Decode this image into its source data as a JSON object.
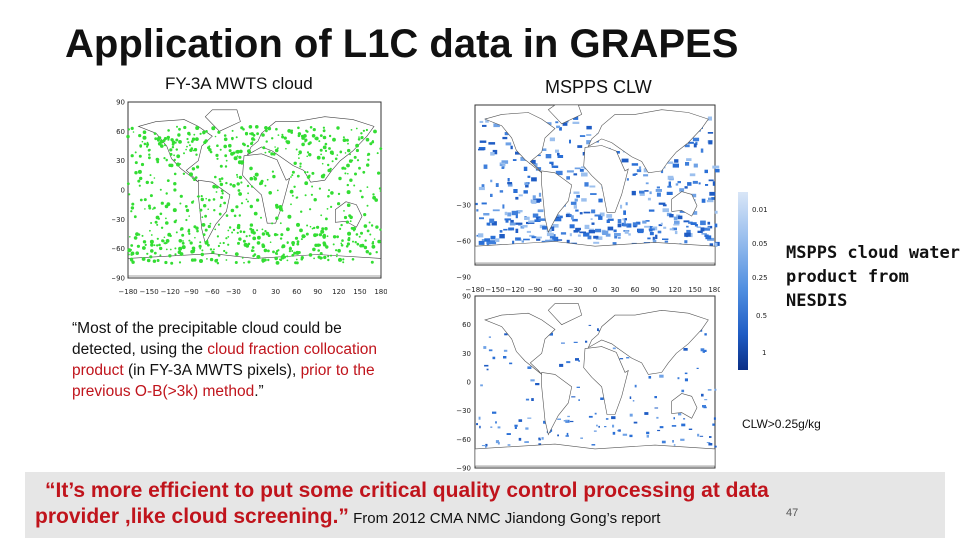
{
  "slide": {
    "title": "Application of L1C data in GRAPES",
    "left_label": "FY-3A MWTS cloud",
    "right_label": "MSPPS CLW",
    "quote": {
      "p1": "“Most of the precipitable cloud could be detected, using the ",
      "r1": "cloud fraction collocation product",
      "p2": " (in FY-3A MWTS pixels),   ",
      "r2": "prior to the previous O-B(>3k) method",
      "p3": ".”"
    },
    "nesdis_note": "MSPPS cloud water\nproduct from\nNESDIS",
    "clw_threshold": "CLW>0.25g/kg",
    "legend_labels": [
      "0.01",
      "0.05",
      "0.25",
      "0.5",
      "1"
    ],
    "bottom_quote": {
      "line1": "“It’s  more  efficient to put some critical quality control processing at data",
      "line2": "provider ,like cloud screening.”",
      "source": " From 2012 CMA NMC Jiandong Gong’s report"
    },
    "page_number": "47"
  },
  "maps": {
    "left_x_ticks": [
      "−180",
      "−150",
      "−120",
      "−90",
      "−60",
      "−30",
      "0",
      "30",
      "60",
      "90",
      "120",
      "150",
      "180"
    ],
    "left_y_ticks": [
      "90",
      "60",
      "30",
      "0",
      "−30",
      "−60",
      "−90"
    ],
    "right_top_y_ticks": [
      "−30",
      "−60",
      "−90"
    ],
    "right_bottom_y_ticks": [
      "90",
      "60",
      "30",
      "0",
      "−30",
      "−60",
      "−90"
    ],
    "right_x_ticks": [
      "−180",
      "−150",
      "−120",
      "−90",
      "−60",
      "−30",
      "0",
      "30",
      "60",
      "90",
      "120",
      "150",
      "180"
    ]
  },
  "colors": {
    "title": "#111111",
    "highlight": "#c0141c",
    "cloud_green": "#33dd33",
    "clw_blue": "#2a6fd6",
    "footer_bg": "#e6e6e6"
  }
}
